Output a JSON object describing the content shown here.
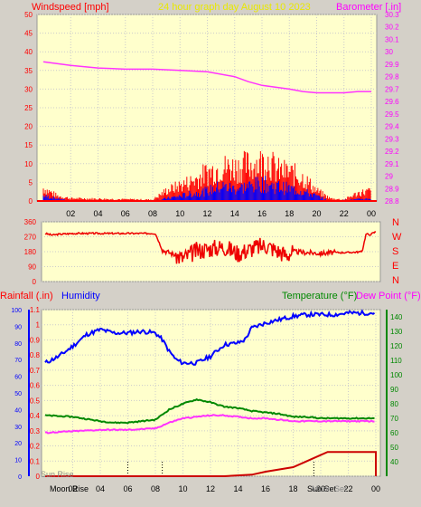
{
  "chart_data": [
    {
      "type": "line",
      "panel": "wind-barometer",
      "title_left": "Windspeed [mph]",
      "title_center": "24 hour graph day   August 10 2023",
      "title_right": "Barometer [.in]",
      "x_ticks": [
        "02",
        "04",
        "06",
        "08",
        "10",
        "12",
        "14",
        "16",
        "18",
        "20",
        "22",
        "00"
      ],
      "left_axis": {
        "label": "Windspeed [mph]",
        "ylim": [
          0,
          50
        ],
        "ticks": [
          "0",
          "5",
          "10",
          "15",
          "20",
          "25",
          "30",
          "35",
          "40",
          "45",
          "50"
        ]
      },
      "right_axis": {
        "label": "Barometer [.in]",
        "ylim": [
          28.8,
          30.3
        ],
        "ticks": [
          "28.8",
          "28.9",
          "29",
          "29.1",
          "29.2",
          "29.3",
          "29.4",
          "29.5",
          "29.6",
          "29.7",
          "29.8",
          "29.9",
          "30",
          "30.1",
          "30.2",
          "30.3"
        ]
      },
      "grid": true,
      "barometer": {
        "x": [
          0,
          2,
          4,
          6,
          8,
          10,
          12,
          14,
          15,
          16,
          18,
          19,
          20,
          22,
          23,
          24
        ],
        "y": [
          29.92,
          29.89,
          29.87,
          29.86,
          29.86,
          29.85,
          29.84,
          29.8,
          29.76,
          29.73,
          29.7,
          29.68,
          29.67,
          29.67,
          29.68,
          29.68
        ]
      },
      "wind_gust_peak": {
        "x": [
          0,
          1,
          2,
          8,
          9,
          10,
          11,
          12,
          13,
          14,
          15,
          16,
          16.5,
          17,
          18,
          19,
          20,
          21,
          22,
          23,
          24
        ],
        "y": [
          5,
          2,
          1,
          0.5,
          4,
          6,
          8,
          11,
          13,
          13,
          14,
          15,
          16,
          12,
          11,
          9,
          4,
          1,
          0.5,
          3,
          4
        ]
      },
      "wind_avg_peak": {
        "x": [
          0,
          1,
          2,
          8,
          9,
          10,
          11,
          12,
          13,
          14,
          15,
          16,
          17,
          18,
          19,
          20,
          21,
          24
        ],
        "y": [
          2,
          1,
          0,
          0,
          1,
          2,
          3,
          4,
          6,
          5,
          6,
          7,
          6,
          5,
          4,
          2,
          0,
          1
        ]
      }
    },
    {
      "type": "line",
      "panel": "wind-direction",
      "right_labels": [
        "N",
        "W",
        "S",
        "E",
        "N"
      ],
      "ylim": [
        0,
        360
      ],
      "ticks": [
        "0",
        "90",
        "180",
        "270",
        "360"
      ],
      "direction": {
        "x": [
          0,
          0.5,
          1,
          2,
          3,
          4,
          6,
          8,
          8.5,
          9,
          10,
          11,
          12,
          13,
          14,
          15,
          16,
          17,
          17.5,
          18,
          19,
          20,
          21,
          22,
          23,
          23.3,
          23.5,
          24
        ],
        "y": [
          290,
          280,
          285,
          290,
          290,
          290,
          290,
          290,
          190,
          175,
          140,
          185,
          200,
          210,
          170,
          200,
          220,
          180,
          160,
          180,
          175,
          170,
          175,
          175,
          180,
          290,
          280,
          300
        ]
      }
    },
    {
      "type": "line",
      "panel": "rain-humidity-temperature",
      "title_left_1": "Rainfall (.in)",
      "title_left_2": "Humidity",
      "title_right_1": "Temperature (°F)",
      "title_right_2": "Dew Point (°F)",
      "x_ticks": [
        "02",
        "04",
        "06",
        "08",
        "10",
        "12",
        "14",
        "16",
        "18",
        "20",
        "22",
        "00"
      ],
      "rain_axis": {
        "ylim": [
          0,
          1.1
        ],
        "ticks": [
          "0",
          "0.1",
          "0.2",
          "0.3",
          "0.4",
          "0.5",
          "0.6",
          "0.7",
          "0.8",
          "0.9",
          "1",
          "1.1"
        ]
      },
      "humidity_axis": {
        "ylim": [
          0,
          100
        ],
        "ticks": [
          "0",
          "10",
          "20",
          "30",
          "40",
          "50",
          "60",
          "70",
          "80",
          "90",
          "100"
        ]
      },
      "temp_axis": {
        "ylim": [
          30,
          145
        ],
        "ticks": [
          "40",
          "50",
          "60",
          "70",
          "80",
          "90",
          "100",
          "110",
          "120",
          "130",
          "140"
        ]
      },
      "grid": true,
      "humidity": {
        "x": [
          0,
          1,
          2,
          3,
          4,
          5,
          6,
          7,
          8,
          8.5,
          9,
          9.5,
          10,
          11,
          12,
          13,
          14,
          14.5,
          15,
          16,
          17,
          18,
          19,
          20,
          21,
          22,
          23,
          24
        ],
        "y": [
          68,
          72,
          78,
          85,
          88,
          86,
          86,
          87,
          86,
          82,
          75,
          70,
          68,
          68,
          72,
          79,
          80,
          82,
          89,
          92,
          94,
          96,
          97,
          97,
          97,
          98,
          98,
          98
        ]
      },
      "temperature": {
        "x": [
          0,
          2,
          4,
          5,
          6,
          7,
          8,
          9,
          10,
          11,
          12,
          13,
          14,
          15,
          16,
          17,
          18,
          19,
          20,
          21,
          22,
          23,
          24
        ],
        "y": [
          72,
          71,
          68,
          67,
          67,
          68,
          69,
          76,
          80,
          83,
          81,
          78,
          77,
          75,
          74,
          73,
          71,
          71,
          70,
          70,
          70,
          70,
          70
        ]
      },
      "dew_point": {
        "x": [
          0,
          2,
          4,
          6,
          8,
          9,
          10,
          11,
          12,
          13,
          14,
          15,
          16,
          17,
          18,
          19,
          20,
          22,
          24
        ],
        "y": [
          60,
          61,
          62,
          62,
          63,
          67,
          70,
          71,
          72,
          72,
          71,
          70,
          70,
          69,
          68,
          68,
          68,
          68,
          68
        ]
      },
      "rainfall": {
        "x": [
          0,
          13,
          15,
          16,
          18,
          19,
          20,
          20.5,
          24,
          24
        ],
        "y": [
          0,
          0,
          0.01,
          0.03,
          0.06,
          0.1,
          0.14,
          0.16,
          0.16,
          0
        ]
      },
      "annotations": {
        "moon_rise": "Moon Rise",
        "moon_set": "Moon Set",
        "sun_rise": "Sun Rise",
        "sun_set": "Sun Set"
      },
      "markers_hours": [
        6,
        8.5,
        19.5
      ]
    }
  ]
}
